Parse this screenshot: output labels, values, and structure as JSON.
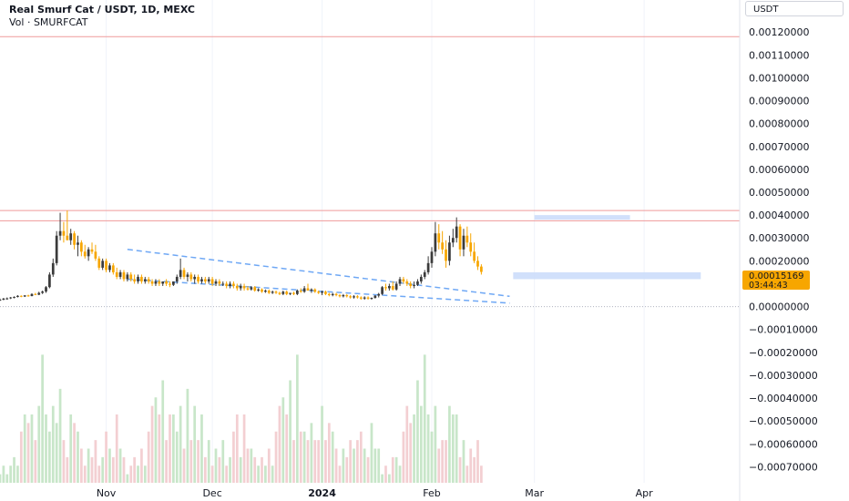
{
  "header": {
    "title": "Real Smurf Cat / USDT, 1D, MEXC",
    "volume_label": "Vol · SMURFCAT",
    "currency": "USDT"
  },
  "price_tag": {
    "value": "0.00015169",
    "countdown": "03:44:43",
    "color": "#f7a600"
  },
  "colors": {
    "up": "#3b3b3b",
    "down": "#f7a600",
    "vol_up": "#c8e6c9",
    "vol_down": "#f3cfd2",
    "red_line": "#ef9a9a",
    "trend": "#6fa8f5",
    "zone": "#c9dbfa"
  },
  "chart_data": {
    "type": "candlestick",
    "title": "Real Smurf Cat / USDT, 1D, MEXC",
    "y_ticks": [
      "0.00120000",
      "0.00110000",
      "0.00100000",
      "0.00090000",
      "0.00080000",
      "0.00070000",
      "0.00060000",
      "0.00050000",
      "0.00040000",
      "0.00030000",
      "0.00020000",
      "0.00010000",
      "0.00000000",
      "−0.00010000",
      "−0.00020000",
      "−0.00030000",
      "−0.00040000",
      "−0.00050000",
      "−0.00060000",
      "−0.00070000"
    ],
    "x_ticks": [
      {
        "label": "Nov",
        "date": "2023-11-01"
      },
      {
        "label": "Dec",
        "date": "2023-12-01"
      },
      {
        "label": "2024",
        "date": "2024-01-01"
      },
      {
        "label": "Feb",
        "date": "2024-02-01"
      },
      {
        "label": "Mar",
        "date": "2024-03-01"
      },
      {
        "label": "Apr",
        "date": "2024-04-01"
      }
    ],
    "ylim": [
      -0.00077,
      0.00134
    ],
    "x_start": "2023-10-02",
    "x_end": "2024-04-28",
    "first_candle": "2023-10-02",
    "candles": [
      [
        3e-05,
        3.5e-05,
        2.5e-05,
        3e-05
      ],
      [
        3e-05,
        3.8e-05,
        2.8e-05,
        3.5e-05
      ],
      [
        3.5e-05,
        4e-05,
        3e-05,
        3.6e-05
      ],
      [
        3.6e-05,
        4.2e-05,
        3.3e-05,
        4e-05
      ],
      [
        4e-05,
        4.5e-05,
        3.6e-05,
        4.2e-05
      ],
      [
        4.2e-05,
        5e-05,
        4e-05,
        4.7e-05
      ],
      [
        4.7e-05,
        4.9e-05,
        4.1e-05,
        4.4e-05
      ],
      [
        4.4e-05,
        5e-05,
        4.2e-05,
        4.9e-05
      ],
      [
        4.9e-05,
        5.2e-05,
        4.3e-05,
        4.6e-05
      ],
      [
        4.6e-05,
        5.8e-05,
        4.5e-05,
        5.5e-05
      ],
      [
        5.5e-05,
        6e-05,
        5e-05,
        5.2e-05
      ],
      [
        5.2e-05,
        6.5e-05,
        5e-05,
        6e-05
      ],
      [
        6e-05,
        7e-05,
        5.5e-05,
        6.6e-05
      ],
      [
        6.6e-05,
        9e-05,
        6e-05,
        8.5e-05
      ],
      [
        8.5e-05,
        0.00015,
        8e-05,
        0.00014
      ],
      [
        0.00014,
        0.00021,
        0.00013,
        0.00019
      ],
      [
        0.00019,
        0.00033,
        0.00018,
        0.00031
      ],
      [
        0.00031,
        0.00041,
        0.00029,
        0.00033
      ],
      [
        0.00033,
        0.00037,
        0.00028,
        0.00031
      ],
      [
        0.00031,
        0.00042,
        0.0003,
        0.00029
      ],
      [
        0.00029,
        0.00034,
        0.00027,
        0.00032
      ],
      [
        0.00032,
        0.00033,
        0.00025,
        0.00027
      ],
      [
        0.00027,
        0.00031,
        0.00022,
        0.00028
      ],
      [
        0.00028,
        0.00029,
        0.00022,
        0.00024
      ],
      [
        0.00024,
        0.00027,
        0.00021,
        0.00022
      ],
      [
        0.00022,
        0.00026,
        0.0002,
        0.00025
      ],
      [
        0.00025,
        0.00028,
        0.00023,
        0.00024
      ],
      [
        0.00024,
        0.00027,
        0.0002,
        0.00021
      ],
      [
        0.00021,
        0.00022,
        0.00016,
        0.00017
      ],
      [
        0.00017,
        0.00021,
        0.00016,
        0.0002
      ],
      [
        0.0002,
        0.00021,
        0.00015,
        0.00016
      ],
      [
        0.00016,
        0.00019,
        0.00015,
        0.00018
      ],
      [
        0.00018,
        0.00019,
        0.00014,
        0.00015
      ],
      [
        0.00015,
        0.00017,
        0.00012,
        0.00013
      ],
      [
        0.00013,
        0.00016,
        0.00012,
        0.00015
      ],
      [
        0.00015,
        0.00016,
        0.00011,
        0.00012
      ],
      [
        0.00012,
        0.00015,
        0.00011,
        0.00014
      ],
      [
        0.00014,
        0.00015,
        0.00011,
        0.00012
      ],
      [
        0.00012,
        0.00014,
        0.0001,
        0.00011
      ],
      [
        0.00011,
        0.00014,
        0.0001,
        0.00013
      ],
      [
        0.00013,
        0.00014,
        0.0001,
        0.00011
      ],
      [
        0.00011,
        0.00013,
        0.0001,
        0.00012
      ],
      [
        0.00012,
        0.00013,
        0.0001,
        0.00011
      ],
      [
        0.00011,
        0.00012,
        9e-05,
        0.0001
      ],
      [
        0.0001,
        0.00012,
        9e-05,
        0.00011
      ],
      [
        0.00011,
        0.00012,
        9e-05,
        0.0001
      ],
      [
        0.0001,
        0.00011,
        9e-05,
        0.00011
      ],
      [
        0.00011,
        0.00012,
        9e-05,
        0.0001
      ],
      [
        0.0001,
        0.00011,
        8.5e-05,
        9.5e-05
      ],
      [
        9.5e-05,
        0.00011,
        9e-05,
        0.00011
      ],
      [
        0.00011,
        0.00014,
        0.0001,
        0.00013
      ],
      [
        0.00013,
        0.00021,
        0.00012,
        0.00016
      ],
      [
        0.00016,
        0.00017,
        0.00012,
        0.00013
      ],
      [
        0.00013,
        0.00015,
        0.00011,
        0.00014
      ],
      [
        0.00014,
        0.00015,
        0.00011,
        0.00012
      ],
      [
        0.00012,
        0.00014,
        0.0001,
        0.00013
      ],
      [
        0.00013,
        0.00014,
        0.0001,
        0.00011
      ],
      [
        0.00011,
        0.00013,
        0.0001,
        0.00012
      ],
      [
        0.00012,
        0.00013,
        0.0001,
        0.00011
      ],
      [
        0.00011,
        0.00013,
        0.0001,
        0.00012
      ],
      [
        0.00012,
        0.00013,
        9e-05,
        0.0001
      ],
      [
        0.0001,
        0.00012,
        9e-05,
        0.00011
      ],
      [
        0.00011,
        0.00012,
        9e-05,
        0.0001
      ],
      [
        0.0001,
        0.00011,
        9e-05,
        0.0001
      ],
      [
        0.0001,
        0.00011,
        8e-05,
        9e-05
      ],
      [
        9e-05,
        0.00011,
        8e-05,
        0.0001
      ],
      [
        0.0001,
        0.00011,
        8e-05,
        9e-05
      ],
      [
        9e-05,
        0.0001,
        7e-05,
        8e-05
      ],
      [
        8e-05,
        0.0001,
        7e-05,
        9e-05
      ],
      [
        9e-05,
        0.0001,
        7e-05,
        8e-05
      ],
      [
        8e-05,
        9e-05,
        7e-05,
        7.5e-05
      ],
      [
        7.5e-05,
        9e-05,
        7e-05,
        8.5e-05
      ],
      [
        8.5e-05,
        9e-05,
        6.5e-05,
        7e-05
      ],
      [
        7e-05,
        8e-05,
        6.5e-05,
        7.5e-05
      ],
      [
        7.5e-05,
        8e-05,
        6e-05,
        6.5e-05
      ],
      [
        6.5e-05,
        7.5e-05,
        6e-05,
        7e-05
      ],
      [
        7e-05,
        7.5e-05,
        5.5e-05,
        6e-05
      ],
      [
        6e-05,
        7e-05,
        5.5e-05,
        6.5e-05
      ],
      [
        6.5e-05,
        7e-05,
        5.5e-05,
        6e-05
      ],
      [
        6e-05,
        6.5e-05,
        5e-05,
        5.5e-05
      ],
      [
        5.5e-05,
        7e-05,
        5e-05,
        6.5e-05
      ],
      [
        6.5e-05,
        7e-05,
        5e-05,
        5.5e-05
      ],
      [
        5.5e-05,
        6e-05,
        5e-05,
        6e-05
      ],
      [
        6e-05,
        6.5e-05,
        5e-05,
        5.5e-05
      ],
      [
        5.5e-05,
        7.5e-05,
        5e-05,
        7e-05
      ],
      [
        7e-05,
        8e-05,
        6e-05,
        6.5e-05
      ],
      [
        6.5e-05,
        9e-05,
        6e-05,
        8e-05
      ],
      [
        8e-05,
        0.0001,
        7e-05,
        7e-05
      ],
      [
        7e-05,
        8e-05,
        6e-05,
        7.5e-05
      ],
      [
        7.5e-05,
        8e-05,
        6e-05,
        6.5e-05
      ],
      [
        6.5e-05,
        7e-05,
        5.5e-05,
        6e-05
      ],
      [
        6e-05,
        7e-05,
        5e-05,
        6.5e-05
      ],
      [
        6.5e-05,
        7e-05,
        5e-05,
        5.5e-05
      ],
      [
        5.5e-05,
        6e-05,
        4.5e-05,
        5e-05
      ],
      [
        5e-05,
        6e-05,
        4.5e-05,
        5.5e-05
      ],
      [
        5.5e-05,
        6e-05,
        4.5e-05,
        5e-05
      ],
      [
        5e-05,
        5.5e-05,
        4e-05,
        4.5e-05
      ],
      [
        4.5e-05,
        5.5e-05,
        4e-05,
        5e-05
      ],
      [
        5e-05,
        5.5e-05,
        4e-05,
        4.5e-05
      ],
      [
        4.5e-05,
        5e-05,
        3.5e-05,
        4e-05
      ],
      [
        4e-05,
        5e-05,
        3.5e-05,
        4.5e-05
      ],
      [
        4.5e-05,
        5e-05,
        3.5e-05,
        4e-05
      ],
      [
        4e-05,
        4.5e-05,
        3e-05,
        3.5e-05
      ],
      [
        3.5e-05,
        4.5e-05,
        3e-05,
        4e-05
      ],
      [
        4e-05,
        4.5e-05,
        3e-05,
        3.5e-05
      ],
      [
        3.5e-05,
        4e-05,
        3e-05,
        3.8e-05
      ],
      [
        3.8e-05,
        5e-05,
        3.5e-05,
        4.8e-05
      ],
      [
        4.8e-05,
        6e-05,
        4e-05,
        5.5e-05
      ],
      [
        5.5e-05,
        9e-05,
        5e-05,
        8.5e-05
      ],
      [
        8.5e-05,
        0.0001,
        7e-05,
        8e-05
      ],
      [
        8e-05,
        0.0001,
        7e-05,
        9e-05
      ],
      [
        9e-05,
        0.00011,
        7e-05,
        7.5e-05
      ],
      [
        7.5e-05,
        0.00011,
        7e-05,
        0.0001
      ],
      [
        0.0001,
        0.00013,
        9e-05,
        0.00012
      ],
      [
        0.00012,
        0.00013,
        0.0001,
        0.00011
      ],
      [
        0.00011,
        0.00012,
        9e-05,
        0.0001
      ],
      [
        0.0001,
        0.00011,
        8e-05,
        9e-05
      ],
      [
        9e-05,
        0.00011,
        8e-05,
        9.5e-05
      ],
      [
        9.5e-05,
        0.00012,
        9e-05,
        0.00011
      ],
      [
        0.00011,
        0.00014,
        0.0001,
        0.00013
      ],
      [
        0.00013,
        0.00016,
        0.00012,
        0.00015
      ],
      [
        0.00015,
        0.00022,
        0.00014,
        0.00019
      ],
      [
        0.00019,
        0.00026,
        0.00017,
        0.00024
      ],
      [
        0.00024,
        0.00037,
        0.00022,
        0.00032
      ],
      [
        0.00032,
        0.00036,
        0.00025,
        0.00028
      ],
      [
        0.00028,
        0.00033,
        0.00023,
        0.00025
      ],
      [
        0.00025,
        0.00029,
        0.00017,
        0.0002
      ],
      [
        0.0002,
        0.00031,
        0.00018,
        0.00028
      ],
      [
        0.00028,
        0.00034,
        0.00026,
        0.0003
      ],
      [
        0.0003,
        0.00039,
        0.00028,
        0.00035
      ],
      [
        0.00035,
        0.00036,
        0.00022,
        0.00025
      ],
      [
        0.00025,
        0.00034,
        0.00022,
        0.00031
      ],
      [
        0.00031,
        0.00035,
        0.00026,
        0.00028
      ],
      [
        0.00028,
        0.00032,
        0.00022,
        0.00024
      ],
      [
        0.00024,
        0.00028,
        0.00019,
        0.0002
      ],
      [
        0.0002,
        0.00022,
        0.00016,
        0.000175
      ],
      [
        0.000175,
        0.000185,
        0.00014,
        0.00015169
      ]
    ],
    "volume_up": [
      1e-05,
      2e-05,
      1e-05,
      2e-05,
      3e-05,
      2e-05,
      4e-05,
      8e-05,
      0.0001,
      8e-05,
      0.00012,
      9e-05,
      0.00015,
      8e-05,
      6e-05,
      9e-05,
      7e-05,
      0.00011,
      6e-05,
      9e-05,
      8e-05,
      8e-05,
      6e-05,
      5e-05,
      6e-05,
      4e-05,
      4e-05,
      5e-05,
      4e-05,
      3e-05,
      3e-05,
      4e-05,
      3e-05,
      7e-05,
      4e-05,
      4e-05
    ],
    "volume_down": [
      3e-05,
      2e-05,
      3e-05,
      3e-05,
      4e-05,
      3e-05,
      6e-05,
      9e-05,
      7e-05,
      8e-05,
      5e-05,
      5e-05,
      8e-05,
      6e-05,
      5e-05,
      5e-05,
      4e-05,
      5e-05,
      5e-05,
      3e-05,
      5e-05,
      7e-05,
      3e-05,
      4e-05,
      2e-05,
      4e-05,
      3e-05,
      5e-05,
      2e-05,
      5e-05,
      6e-05,
      8e-05,
      3e-05,
      8e-05,
      4e-05,
      3e-05
    ],
    "volume_top": 0.00016,
    "red_lines": [
      0.00118,
      0.00042,
      0.000375
    ],
    "dotted_line": 0.0,
    "trendlines": [
      {
        "from": [
          "2023-11-07",
          0.00025
        ],
        "to": [
          "2024-02-23",
          4.5e-05
        ]
      },
      {
        "from": [
          "2023-11-07",
          0.00012
        ],
        "to": [
          "2024-02-23",
          1.5e-05
        ]
      }
    ],
    "zones": [
      {
        "from": "2024-03-01",
        "to": "2024-03-28",
        "low": 0.00038,
        "high": 0.0004
      },
      {
        "from": "2024-02-24",
        "to": "2024-04-17",
        "low": 0.00012,
        "high": 0.00015
      }
    ]
  }
}
